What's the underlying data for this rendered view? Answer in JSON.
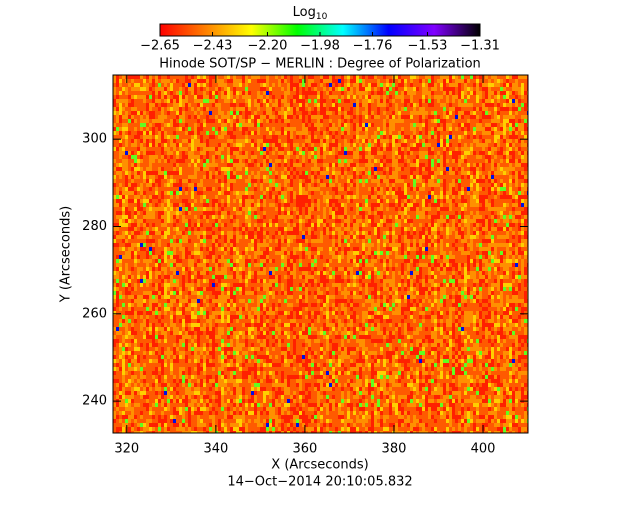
{
  "chart_data": {
    "type": "heatmap",
    "title": "Hinode SOT/SP − MERLIN : Degree of Polarization",
    "subtitle": "14−Oct−2014 20:10:05.832",
    "x_label": "X (Arcseconds)",
    "y_label": "Y (Arcseconds)",
    "xlim": [
      316.9,
      410.1
    ],
    "ylim": [
      232.7,
      314.7
    ],
    "xticks": [
      320,
      340,
      360,
      380,
      400
    ],
    "yticks": [
      240,
      260,
      280,
      300
    ],
    "colorbar": {
      "label": "Log",
      "label_sub": "10",
      "clim": [
        -2.65,
        -1.31
      ],
      "ticks": [
        {
          "value": -2.65,
          "label": "−2.65"
        },
        {
          "value": -2.43,
          "label": "−2.43"
        },
        {
          "value": -2.2,
          "label": "−2.20"
        },
        {
          "value": -1.98,
          "label": "−1.98"
        },
        {
          "value": -1.76,
          "label": "−1.76"
        },
        {
          "value": -1.53,
          "label": "−1.53"
        },
        {
          "value": -1.31,
          "label": "−1.31"
        }
      ],
      "colors": [
        "#ff0000",
        "#ff8000",
        "#ffff00",
        "#00ff00",
        "#00ffff",
        "#0000ff",
        "#8000ff",
        "#000000"
      ]
    }
  }
}
